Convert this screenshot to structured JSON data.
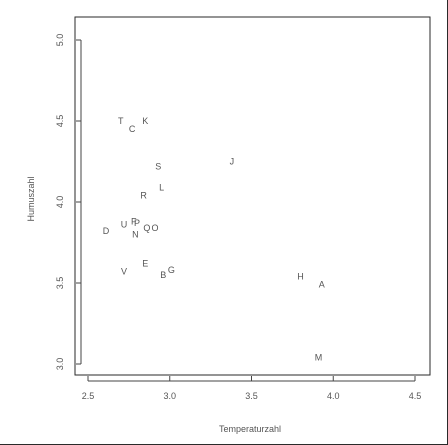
{
  "chart_data": {
    "type": "scatter",
    "title": "",
    "xlabel": "Temperaturzahl",
    "ylabel": "Humuszahl",
    "xlim": [
      2.5,
      4.5
    ],
    "ylim": [
      3.0,
      5.0
    ],
    "grid": false,
    "x_ticks": [
      {
        "value": 2.5,
        "label": "2.5"
      },
      {
        "value": 3.0,
        "label": "3.0"
      },
      {
        "value": 3.5,
        "label": "3.5"
      },
      {
        "value": 4.0,
        "label": "4.0"
      },
      {
        "value": 4.5,
        "label": "4.5"
      }
    ],
    "y_ticks": [
      {
        "value": 3.0,
        "label": "3.0"
      },
      {
        "value": 3.5,
        "label": "3.5"
      },
      {
        "value": 4.0,
        "label": "4.0"
      },
      {
        "value": 4.5,
        "label": "4.5"
      },
      {
        "value": 5.0,
        "label": "5.0"
      }
    ],
    "points": [
      {
        "label": "T",
        "x": 2.7,
        "y": 4.5
      },
      {
        "label": "K",
        "x": 2.85,
        "y": 4.5
      },
      {
        "label": "C",
        "x": 2.77,
        "y": 4.45
      },
      {
        "label": "S",
        "x": 2.93,
        "y": 4.22
      },
      {
        "label": "J",
        "x": 3.38,
        "y": 4.25
      },
      {
        "label": "L",
        "x": 2.95,
        "y": 4.09
      },
      {
        "label": "R",
        "x": 2.84,
        "y": 4.04
      },
      {
        "label": "D",
        "x": 2.61,
        "y": 3.82
      },
      {
        "label": "U",
        "x": 2.72,
        "y": 3.86
      },
      {
        "label": "F",
        "x": 2.78,
        "y": 3.88
      },
      {
        "label": "P",
        "x": 2.8,
        "y": 3.87
      },
      {
        "label": "N",
        "x": 2.79,
        "y": 3.8
      },
      {
        "label": "Q",
        "x": 2.86,
        "y": 3.84
      },
      {
        "label": "O",
        "x": 2.91,
        "y": 3.84
      },
      {
        "label": "V",
        "x": 2.72,
        "y": 3.57
      },
      {
        "label": "E",
        "x": 2.85,
        "y": 3.62
      },
      {
        "label": "B",
        "x": 2.96,
        "y": 3.55
      },
      {
        "label": "G",
        "x": 3.01,
        "y": 3.58
      },
      {
        "label": "H",
        "x": 3.8,
        "y": 3.54
      },
      {
        "label": "A",
        "x": 3.93,
        "y": 3.49
      },
      {
        "label": "M",
        "x": 3.91,
        "y": 3.04
      }
    ]
  }
}
